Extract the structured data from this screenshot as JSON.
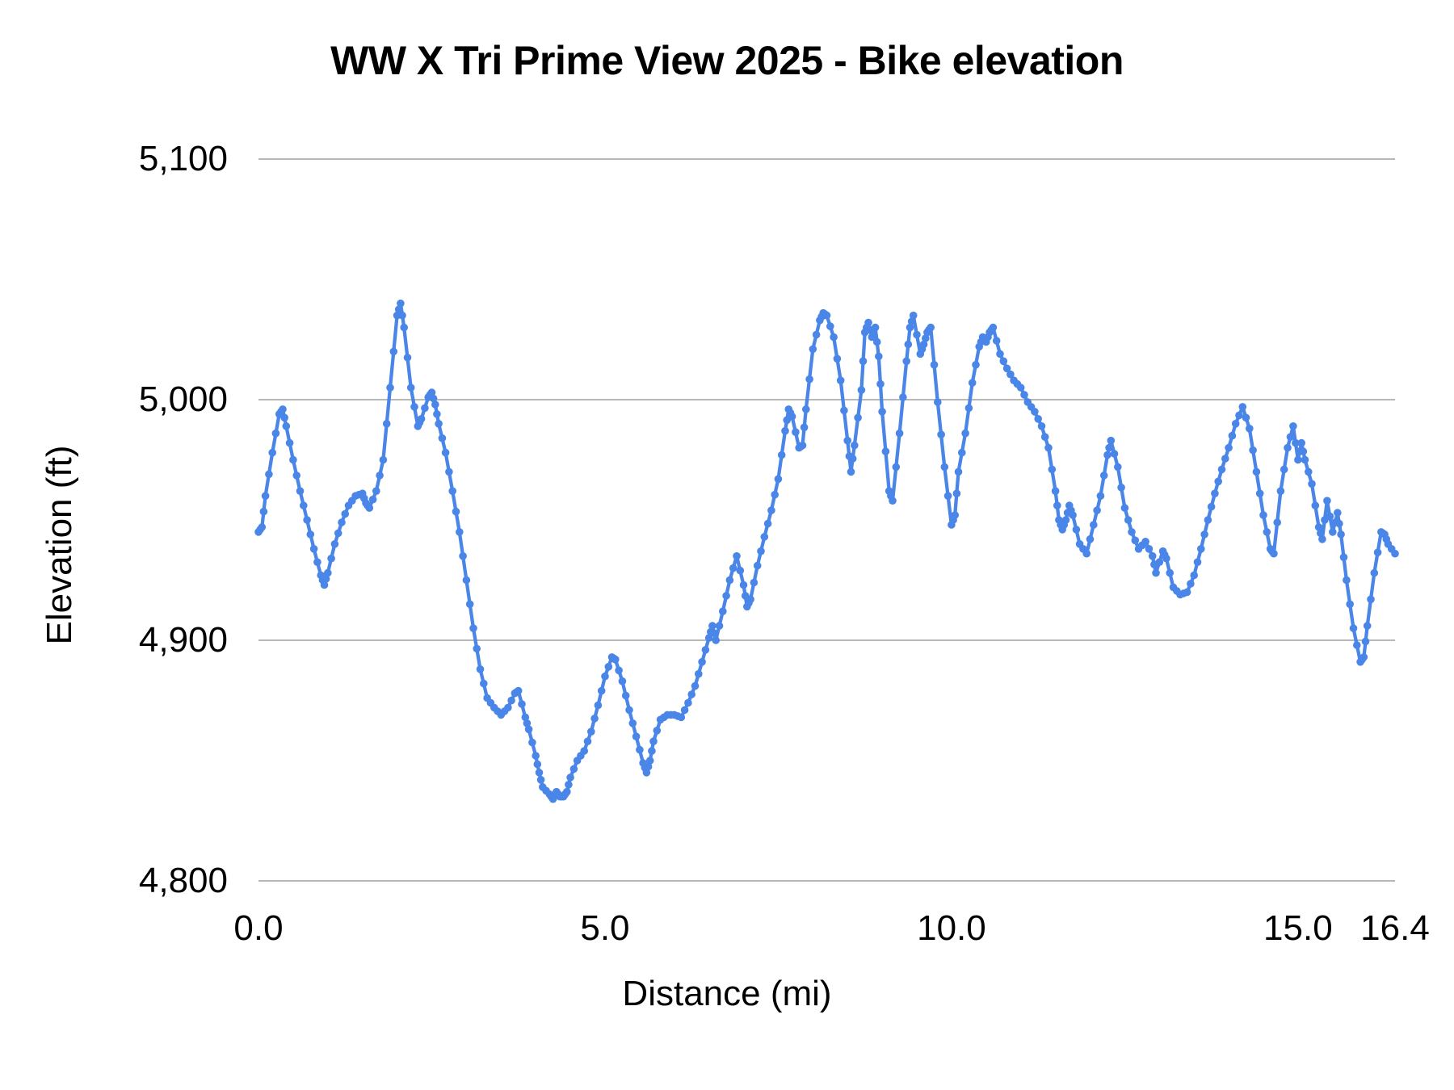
{
  "title": "WW X Tri Prime View 2025 - Bike elevation",
  "colors": {
    "series": "#4a86e8",
    "gridline": "#b7b7b7",
    "text": "#000000",
    "background": "#ffffff"
  },
  "chart_data": {
    "type": "line",
    "title": "WW X Tri Prime View 2025 - Bike elevation",
    "xlabel": "Distance (mi)",
    "ylabel": "Elevation (ft)",
    "xlim": [
      0,
      16.4
    ],
    "ylim": [
      4800,
      5100
    ],
    "x_ticks": [
      {
        "label": "0.0",
        "value": 0
      },
      {
        "label": "5.0",
        "value": 5
      },
      {
        "label": "10.0",
        "value": 10
      },
      {
        "label": "15.0",
        "value": 15
      },
      {
        "label": "16.4",
        "value": 16.4
      }
    ],
    "y_ticks": [
      {
        "label": "5,100",
        "value": 5100
      },
      {
        "label": "5,000",
        "value": 5000
      },
      {
        "label": "4,900",
        "value": 4900
      },
      {
        "label": "4,800",
        "value": 4800
      }
    ],
    "grid": "horizontal",
    "legend": "none",
    "markers": true,
    "series": [
      {
        "name": "Bike elevation",
        "points": [
          [
            0.0,
            4945
          ],
          [
            0.05,
            4947
          ],
          [
            0.1,
            4960
          ],
          [
            0.2,
            4978
          ],
          [
            0.3,
            4994
          ],
          [
            0.35,
            4996
          ],
          [
            0.4,
            4989
          ],
          [
            0.5,
            4975
          ],
          [
            0.6,
            4962
          ],
          [
            0.7,
            4950
          ],
          [
            0.8,
            4938
          ],
          [
            0.9,
            4927
          ],
          [
            0.95,
            4923
          ],
          [
            1.0,
            4928
          ],
          [
            1.1,
            4940
          ],
          [
            1.2,
            4949
          ],
          [
            1.3,
            4956
          ],
          [
            1.4,
            4960
          ],
          [
            1.5,
            4961
          ],
          [
            1.55,
            4957
          ],
          [
            1.6,
            4955
          ],
          [
            1.7,
            4962
          ],
          [
            1.8,
            4975
          ],
          [
            1.9,
            5005
          ],
          [
            2.0,
            5035
          ],
          [
            2.05,
            5040
          ],
          [
            2.1,
            5030
          ],
          [
            2.2,
            5005
          ],
          [
            2.3,
            4989
          ],
          [
            2.35,
            4992
          ],
          [
            2.45,
            5001
          ],
          [
            2.5,
            5003
          ],
          [
            2.55,
            4998
          ],
          [
            2.6,
            4990
          ],
          [
            2.7,
            4978
          ],
          [
            2.8,
            4962
          ],
          [
            2.9,
            4945
          ],
          [
            3.0,
            4925
          ],
          [
            3.1,
            4905
          ],
          [
            3.2,
            4888
          ],
          [
            3.3,
            4876
          ],
          [
            3.4,
            4872
          ],
          [
            3.5,
            4869
          ],
          [
            3.6,
            4872
          ],
          [
            3.7,
            4878
          ],
          [
            3.75,
            4879
          ],
          [
            3.85,
            4868
          ],
          [
            3.9,
            4863
          ],
          [
            4.0,
            4852
          ],
          [
            4.05,
            4845
          ],
          [
            4.1,
            4839
          ],
          [
            4.2,
            4836
          ],
          [
            4.25,
            4834
          ],
          [
            4.3,
            4837
          ],
          [
            4.35,
            4835
          ],
          [
            4.4,
            4835
          ],
          [
            4.45,
            4837
          ],
          [
            4.5,
            4843
          ],
          [
            4.6,
            4850
          ],
          [
            4.7,
            4854
          ],
          [
            4.8,
            4862
          ],
          [
            4.9,
            4873
          ],
          [
            5.0,
            4885
          ],
          [
            5.1,
            4893
          ],
          [
            5.15,
            4892
          ],
          [
            5.25,
            4883
          ],
          [
            5.35,
            4871
          ],
          [
            5.45,
            4860
          ],
          [
            5.55,
            4849
          ],
          [
            5.6,
            4845
          ],
          [
            5.65,
            4850
          ],
          [
            5.7,
            4858
          ],
          [
            5.8,
            4867
          ],
          [
            5.9,
            4869
          ],
          [
            6.0,
            4869
          ],
          [
            6.1,
            4868
          ],
          [
            6.2,
            4874
          ],
          [
            6.3,
            4881
          ],
          [
            6.4,
            4891
          ],
          [
            6.5,
            4901
          ],
          [
            6.55,
            4906
          ],
          [
            6.6,
            4900
          ],
          [
            6.7,
            4912
          ],
          [
            6.8,
            4925
          ],
          [
            6.9,
            4935
          ],
          [
            7.0,
            4923
          ],
          [
            7.05,
            4914
          ],
          [
            7.1,
            4917
          ],
          [
            7.2,
            4931
          ],
          [
            7.3,
            4943
          ],
          [
            7.4,
            4954
          ],
          [
            7.5,
            4967
          ],
          [
            7.6,
            4987
          ],
          [
            7.65,
            4996
          ],
          [
            7.7,
            4993
          ],
          [
            7.8,
            4980
          ],
          [
            7.85,
            4981
          ],
          [
            7.9,
            4996
          ],
          [
            8.0,
            5021
          ],
          [
            8.1,
            5033
          ],
          [
            8.15,
            5036
          ],
          [
            8.2,
            5035
          ],
          [
            8.3,
            5026
          ],
          [
            8.4,
            5008
          ],
          [
            8.5,
            4983
          ],
          [
            8.55,
            4970
          ],
          [
            8.6,
            4981
          ],
          [
            8.7,
            5004
          ],
          [
            8.75,
            5028
          ],
          [
            8.8,
            5032
          ],
          [
            8.85,
            5026
          ],
          [
            8.9,
            5030
          ],
          [
            8.95,
            5018
          ],
          [
            9.0,
            4995
          ],
          [
            9.1,
            4962
          ],
          [
            9.15,
            4958
          ],
          [
            9.25,
            4986
          ],
          [
            9.35,
            5016
          ],
          [
            9.4,
            5030
          ],
          [
            9.45,
            5035
          ],
          [
            9.55,
            5019
          ],
          [
            9.6,
            5023
          ],
          [
            9.65,
            5028
          ],
          [
            9.7,
            5030
          ],
          [
            9.8,
            4999
          ],
          [
            9.9,
            4972
          ],
          [
            10.0,
            4948
          ],
          [
            10.05,
            4952
          ],
          [
            10.1,
            4970
          ],
          [
            10.2,
            4986
          ],
          [
            10.3,
            5007
          ],
          [
            10.4,
            5022
          ],
          [
            10.45,
            5026
          ],
          [
            10.5,
            5024
          ],
          [
            10.55,
            5028
          ],
          [
            10.6,
            5030
          ],
          [
            10.7,
            5019
          ],
          [
            10.8,
            5013
          ],
          [
            10.9,
            5008
          ],
          [
            11.0,
            5005
          ],
          [
            11.1,
            4999
          ],
          [
            11.2,
            4995
          ],
          [
            11.3,
            4989
          ],
          [
            11.4,
            4980
          ],
          [
            11.5,
            4962
          ],
          [
            11.55,
            4950
          ],
          [
            11.6,
            4946
          ],
          [
            11.65,
            4950
          ],
          [
            11.7,
            4956
          ],
          [
            11.75,
            4952
          ],
          [
            11.85,
            4940
          ],
          [
            11.95,
            4936
          ],
          [
            12.05,
            4948
          ],
          [
            12.15,
            4960
          ],
          [
            12.25,
            4977
          ],
          [
            12.3,
            4983
          ],
          [
            12.4,
            4972
          ],
          [
            12.5,
            4955
          ],
          [
            12.6,
            4945
          ],
          [
            12.7,
            4938
          ],
          [
            12.8,
            4941
          ],
          [
            12.9,
            4935
          ],
          [
            12.95,
            4928
          ],
          [
            13.05,
            4937
          ],
          [
            13.1,
            4934
          ],
          [
            13.2,
            4922
          ],
          [
            13.3,
            4919
          ],
          [
            13.4,
            4920
          ],
          [
            13.5,
            4927
          ],
          [
            13.6,
            4938
          ],
          [
            13.7,
            4950
          ],
          [
            13.8,
            4961
          ],
          [
            13.9,
            4971
          ],
          [
            14.0,
            4980
          ],
          [
            14.1,
            4990
          ],
          [
            14.2,
            4997
          ],
          [
            14.3,
            4988
          ],
          [
            14.4,
            4970
          ],
          [
            14.5,
            4952
          ],
          [
            14.6,
            4938
          ],
          [
            14.65,
            4936
          ],
          [
            14.75,
            4962
          ],
          [
            14.85,
            4980
          ],
          [
            14.93,
            4989
          ],
          [
            15.0,
            4975
          ],
          [
            15.05,
            4982
          ],
          [
            15.1,
            4975
          ],
          [
            15.2,
            4965
          ],
          [
            15.3,
            4947
          ],
          [
            15.35,
            4942
          ],
          [
            15.42,
            4958
          ],
          [
            15.5,
            4945
          ],
          [
            15.57,
            4953
          ],
          [
            15.62,
            4944
          ],
          [
            15.7,
            4925
          ],
          [
            15.8,
            4905
          ],
          [
            15.9,
            4891
          ],
          [
            15.95,
            4893
          ],
          [
            16.0,
            4906
          ],
          [
            16.1,
            4928
          ],
          [
            16.2,
            4945
          ],
          [
            16.25,
            4944
          ],
          [
            16.3,
            4940
          ],
          [
            16.4,
            4936
          ]
        ]
      }
    ]
  }
}
